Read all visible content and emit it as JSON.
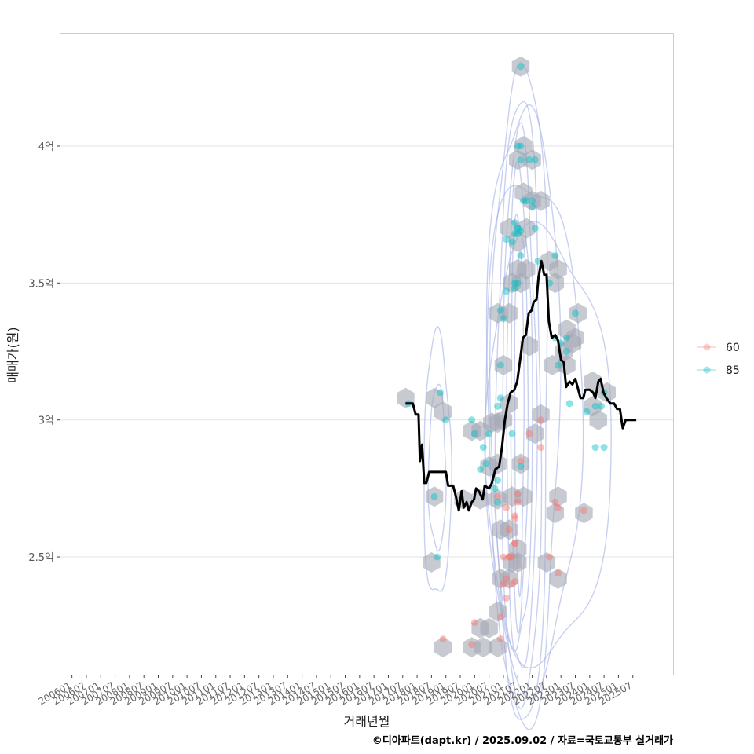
{
  "chart_data": {
    "type": "scatter",
    "title": "",
    "xlabel": "거래년월",
    "ylabel": "매매가(원)",
    "caption": "©디아파트(dapt.kr) / 2025.09.02 / 자료=국토교통부 실거래가",
    "x_ticks": [
      "200601",
      "200607",
      "200701",
      "200707",
      "200801",
      "200807",
      "200901",
      "200907",
      "201001",
      "201007",
      "201101",
      "201107",
      "201201",
      "201207",
      "201301",
      "201307",
      "201401",
      "201407",
      "201501",
      "201507",
      "201601",
      "201607",
      "201701",
      "201707",
      "201801",
      "201807",
      "201901",
      "201907",
      "202001",
      "202007",
      "202101",
      "202107",
      "202201",
      "202207",
      "202301",
      "202307",
      "202401",
      "202407",
      "202501",
      "202507"
    ],
    "xlim": [
      2005.6,
      2026.9
    ],
    "y_ticks": [
      {
        "value": 2.5,
        "label": "2.5억"
      },
      {
        "value": 3.0,
        "label": "3억"
      },
      {
        "value": 3.5,
        "label": "3.5억"
      },
      {
        "value": 4.0,
        "label": "4억"
      }
    ],
    "ylim": [
      2.07,
      4.41
    ],
    "grid": true,
    "legend": {
      "position": "right",
      "entries": [
        {
          "label": "60",
          "color": "#F8766D"
        },
        {
          "label": "85",
          "color": "#00BFC4"
        }
      ]
    },
    "series": [
      {
        "name": "60",
        "color": "#F8766D",
        "points": [
          [
            2018.9,
            2.2
          ],
          [
            2019.9,
            2.18
          ],
          [
            2020.0,
            2.26
          ],
          [
            2020.9,
            2.2
          ],
          [
            2020.9,
            2.28
          ],
          [
            2021.0,
            2.4
          ],
          [
            2021.1,
            2.35
          ],
          [
            2021.1,
            2.42
          ],
          [
            2021.2,
            2.5
          ],
          [
            2021.2,
            2.5
          ],
          [
            2021.3,
            2.5
          ],
          [
            2021.0,
            2.5
          ],
          [
            2021.4,
            2.55
          ],
          [
            2021.4,
            2.55
          ],
          [
            2021.3,
            2.4
          ],
          [
            2021.4,
            2.64
          ],
          [
            2021.4,
            2.65
          ],
          [
            2021.2,
            2.6
          ],
          [
            2021.1,
            2.68
          ],
          [
            2021.5,
            2.7
          ],
          [
            2021.5,
            2.73
          ],
          [
            2021.6,
            2.85
          ],
          [
            2021.9,
            2.95
          ],
          [
            2022.3,
            2.9
          ],
          [
            2022.3,
            3.0
          ],
          [
            2022.6,
            2.5
          ],
          [
            2022.9,
            2.44
          ],
          [
            2022.8,
            2.7
          ],
          [
            2022.9,
            2.68
          ],
          [
            2023.8,
            2.67
          ],
          [
            2020.8,
            2.72
          ],
          [
            2021.4,
            2.41
          ]
        ]
      },
      {
        "name": "85",
        "color": "#00BFC4",
        "points": [
          [
            2017.7,
            3.06
          ],
          [
            2018.8,
            3.1
          ],
          [
            2019.0,
            3.0
          ],
          [
            2018.6,
            2.72
          ],
          [
            2018.7,
            2.5
          ],
          [
            2019.9,
            3.0
          ],
          [
            2020.0,
            2.95
          ],
          [
            2020.3,
            2.9
          ],
          [
            2020.5,
            2.95
          ],
          [
            2020.4,
            2.84
          ],
          [
            2020.2,
            2.82
          ],
          [
            2020.7,
            2.75
          ],
          [
            2020.8,
            2.7
          ],
          [
            2020.8,
            2.78
          ],
          [
            2020.8,
            3.05
          ],
          [
            2020.9,
            3.08
          ],
          [
            2020.9,
            3.2
          ],
          [
            2020.9,
            3.4
          ],
          [
            2021.0,
            3.37
          ],
          [
            2021.1,
            3.47
          ],
          [
            2021.4,
            3.48
          ],
          [
            2021.4,
            3.5
          ],
          [
            2021.5,
            3.5
          ],
          [
            2021.6,
            3.6
          ],
          [
            2021.5,
            3.7
          ],
          [
            2021.5,
            3.7
          ],
          [
            2021.6,
            3.69
          ],
          [
            2021.4,
            3.68
          ],
          [
            2021.5,
            3.68
          ],
          [
            2021.3,
            3.65
          ],
          [
            2021.1,
            3.66
          ],
          [
            2021.4,
            3.72
          ],
          [
            2021.7,
            3.8
          ],
          [
            2021.8,
            3.8
          ],
          [
            2022.0,
            3.78
          ],
          [
            2022.0,
            3.8
          ],
          [
            2022.1,
            3.7
          ],
          [
            2021.9,
            3.95
          ],
          [
            2022.1,
            3.95
          ],
          [
            2021.6,
            3.95
          ],
          [
            2021.5,
            4.0
          ],
          [
            2021.6,
            4.0
          ],
          [
            2021.6,
            4.29
          ],
          [
            2022.2,
            3.58
          ],
          [
            2022.6,
            3.5
          ],
          [
            2022.8,
            3.6
          ],
          [
            2022.8,
            3.3
          ],
          [
            2023.0,
            3.28
          ],
          [
            2023.2,
            3.3
          ],
          [
            2023.2,
            3.25
          ],
          [
            2023.5,
            3.39
          ],
          [
            2022.9,
            3.2
          ],
          [
            2023.3,
            3.06
          ],
          [
            2023.9,
            3.03
          ],
          [
            2024.2,
            3.05
          ],
          [
            2024.4,
            3.05
          ],
          [
            2024.5,
            3.1
          ],
          [
            2024.2,
            2.9
          ],
          [
            2024.5,
            2.9
          ],
          [
            2021.3,
            2.95
          ],
          [
            2021.6,
            2.83
          ]
        ]
      }
    ],
    "trend_line": {
      "name": "moving-average",
      "color": "#000000",
      "points": [
        [
          2017.6,
          3.06
        ],
        [
          2017.85,
          3.06
        ],
        [
          2017.95,
          3.02
        ],
        [
          2018.05,
          3.02
        ],
        [
          2018.1,
          2.85
        ],
        [
          2018.17,
          2.91
        ],
        [
          2018.25,
          2.77
        ],
        [
          2018.32,
          2.77
        ],
        [
          2018.42,
          2.81
        ],
        [
          2019.0,
          2.81
        ],
        [
          2019.08,
          2.76
        ],
        [
          2019.25,
          2.76
        ],
        [
          2019.35,
          2.72
        ],
        [
          2019.45,
          2.67
        ],
        [
          2019.55,
          2.74
        ],
        [
          2019.62,
          2.68
        ],
        [
          2019.72,
          2.7
        ],
        [
          2019.8,
          2.67
        ],
        [
          2019.9,
          2.7
        ],
        [
          2019.98,
          2.71
        ],
        [
          2020.05,
          2.75
        ],
        [
          2020.15,
          2.74
        ],
        [
          2020.28,
          2.71
        ],
        [
          2020.35,
          2.76
        ],
        [
          2020.5,
          2.75
        ],
        [
          2020.6,
          2.77
        ],
        [
          2020.72,
          2.82
        ],
        [
          2020.85,
          2.83
        ],
        [
          2020.95,
          2.9
        ],
        [
          2021.05,
          3.0
        ],
        [
          2021.15,
          3.06
        ],
        [
          2021.25,
          3.1
        ],
        [
          2021.38,
          3.11
        ],
        [
          2021.48,
          3.14
        ],
        [
          2021.58,
          3.22
        ],
        [
          2021.68,
          3.3
        ],
        [
          2021.78,
          3.31
        ],
        [
          2021.88,
          3.39
        ],
        [
          2021.98,
          3.4
        ],
        [
          2022.05,
          3.43
        ],
        [
          2022.15,
          3.44
        ],
        [
          2022.22,
          3.52
        ],
        [
          2022.32,
          3.58
        ],
        [
          2022.42,
          3.53
        ],
        [
          2022.5,
          3.53
        ],
        [
          2022.58,
          3.36
        ],
        [
          2022.68,
          3.3
        ],
        [
          2022.8,
          3.31
        ],
        [
          2022.9,
          3.29
        ],
        [
          2023.0,
          3.22
        ],
        [
          2023.1,
          3.21
        ],
        [
          2023.18,
          3.12
        ],
        [
          2023.3,
          3.14
        ],
        [
          2023.4,
          3.13
        ],
        [
          2023.5,
          3.15
        ],
        [
          2023.58,
          3.12
        ],
        [
          2023.68,
          3.08
        ],
        [
          2023.78,
          3.08
        ],
        [
          2023.85,
          3.11
        ],
        [
          2024.0,
          3.11
        ],
        [
          2024.12,
          3.1
        ],
        [
          2024.2,
          3.08
        ],
        [
          2024.3,
          3.14
        ],
        [
          2024.38,
          3.15
        ],
        [
          2024.48,
          3.1
        ],
        [
          2024.58,
          3.08
        ],
        [
          2024.72,
          3.06
        ],
        [
          2024.85,
          3.06
        ],
        [
          2024.95,
          3.04
        ],
        [
          2025.05,
          3.04
        ],
        [
          2025.15,
          2.97
        ],
        [
          2025.25,
          3.0
        ],
        [
          2025.45,
          3.0
        ],
        [
          2025.62,
          3.0
        ]
      ]
    },
    "hexbins": [
      [
        2021.6,
        4.29
      ],
      [
        2021.7,
        4.0
      ],
      [
        2021.5,
        3.95
      ],
      [
        2022.0,
        3.95
      ],
      [
        2021.7,
        3.83
      ],
      [
        2022.0,
        3.8
      ],
      [
        2022.3,
        3.8
      ],
      [
        2021.2,
        3.7
      ],
      [
        2021.5,
        3.65
      ],
      [
        2021.8,
        3.7
      ],
      [
        2021.5,
        3.55
      ],
      [
        2021.8,
        3.55
      ],
      [
        2022.6,
        3.58
      ],
      [
        2022.9,
        3.55
      ],
      [
        2021.3,
        3.5
      ],
      [
        2021.6,
        3.5
      ],
      [
        2022.8,
        3.5
      ],
      [
        2020.8,
        3.39
      ],
      [
        2021.2,
        3.39
      ],
      [
        2023.2,
        3.33
      ],
      [
        2023.6,
        3.39
      ],
      [
        2023.5,
        3.3
      ],
      [
        2023.1,
        3.25
      ],
      [
        2023.4,
        3.28
      ],
      [
        2021.9,
        3.27
      ],
      [
        2021.0,
        3.2
      ],
      [
        2022.7,
        3.2
      ],
      [
        2023.2,
        3.2
      ],
      [
        2024.1,
        3.14
      ],
      [
        2017.6,
        3.08
      ],
      [
        2018.6,
        3.08
      ],
      [
        2018.9,
        3.03
      ],
      [
        2021.2,
        3.06
      ],
      [
        2021.0,
        3.0
      ],
      [
        2024.1,
        3.05
      ],
      [
        2024.3,
        3.0
      ],
      [
        2024.6,
        3.1
      ],
      [
        2019.9,
        2.96
      ],
      [
        2020.2,
        2.96
      ],
      [
        2020.6,
        2.99
      ],
      [
        2020.8,
        2.99
      ],
      [
        2022.1,
        2.95
      ],
      [
        2022.3,
        3.02
      ],
      [
        2020.5,
        2.83
      ],
      [
        2020.8,
        2.84
      ],
      [
        2021.6,
        2.84
      ],
      [
        2019.6,
        2.71
      ],
      [
        2020.2,
        2.71
      ],
      [
        2020.8,
        2.71
      ],
      [
        2021.3,
        2.72
      ],
      [
        2021.7,
        2.72
      ],
      [
        2018.6,
        2.72
      ],
      [
        2022.9,
        2.72
      ],
      [
        2022.8,
        2.66
      ],
      [
        2023.8,
        2.66
      ],
      [
        2020.9,
        2.6
      ],
      [
        2021.2,
        2.6
      ],
      [
        2021.5,
        2.53
      ],
      [
        2021.5,
        2.48
      ],
      [
        2021.3,
        2.48
      ],
      [
        2018.5,
        2.48
      ],
      [
        2022.5,
        2.48
      ],
      [
        2022.9,
        2.42
      ],
      [
        2020.9,
        2.42
      ],
      [
        2021.2,
        2.42
      ],
      [
        2020.8,
        2.3
      ],
      [
        2020.5,
        2.24
      ],
      [
        2020.2,
        2.24
      ],
      [
        2020.3,
        2.17
      ],
      [
        2019.9,
        2.17
      ],
      [
        2018.9,
        2.17
      ],
      [
        2020.8,
        2.17
      ]
    ],
    "density_contours": [
      {
        "cx": 2021.55,
        "cy": 3.02,
        "rx": 0.16,
        "ry": 0.62
      },
      {
        "cx": 2021.55,
        "cy": 3.02,
        "rx": 0.3,
        "ry": 0.74
      },
      {
        "cx": 2021.55,
        "cy": 3.02,
        "rx": 0.45,
        "ry": 0.86
      },
      {
        "cx": 2021.55,
        "cy": 3.03,
        "rx": 0.6,
        "ry": 0.98
      },
      {
        "cx": 2021.55,
        "cy": 3.05,
        "rx": 0.78,
        "ry": 1.1
      },
      {
        "cx": 2021.6,
        "cy": 3.1,
        "rx": 0.98,
        "ry": 1.2
      },
      {
        "cx": 2021.7,
        "cy": 3.05,
        "rx": 1.25,
        "ry": 1.12
      },
      {
        "cx": 2022.0,
        "cy": 2.98,
        "rx": 1.7,
        "ry": 0.92
      },
      {
        "cx": 2022.5,
        "cy": 2.9,
        "rx": 2.2,
        "ry": 0.78
      },
      {
        "cx": 2018.7,
        "cy": 2.82,
        "rx": 0.48,
        "ry": 0.48
      },
      {
        "cx": 2018.7,
        "cy": 2.82,
        "rx": 0.3,
        "ry": 0.3
      }
    ]
  }
}
